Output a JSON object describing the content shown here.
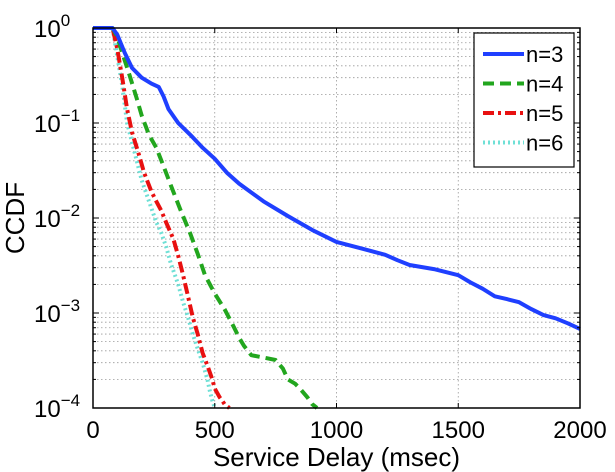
{
  "chart_data": {
    "type": "line",
    "xlabel": "Service Delay (msec)",
    "ylabel": "CCDF",
    "x_scale": "linear",
    "y_scale": "log",
    "xlim": [
      0,
      2000
    ],
    "ylim": [
      0.0001,
      1
    ],
    "x_ticks": [
      0,
      500,
      1000,
      1500,
      2000
    ],
    "x_tick_labels": [
      "0",
      "500",
      "1000",
      "1500",
      "2000"
    ],
    "y_ticks": [
      0.0001,
      0.001,
      0.01,
      0.1,
      1
    ],
    "y_tick_labels": [
      {
        "base": "10",
        "exp": "−4"
      },
      {
        "base": "10",
        "exp": "−3"
      },
      {
        "base": "10",
        "exp": "−2"
      },
      {
        "base": "10",
        "exp": "−1"
      },
      {
        "base": "10",
        "exp": "0"
      }
    ],
    "grid": "dotted, major and minor",
    "legend_position": "top-right",
    "series": [
      {
        "name": "n=3",
        "color": "#1f3fff",
        "dash": "solid",
        "points": [
          [
            0,
            1
          ],
          [
            80,
            1
          ],
          [
            100,
            0.85
          ],
          [
            130,
            0.55
          ],
          [
            160,
            0.38
          ],
          [
            200,
            0.3
          ],
          [
            240,
            0.26
          ],
          [
            270,
            0.24
          ],
          [
            290,
            0.19
          ],
          [
            310,
            0.14
          ],
          [
            350,
            0.1
          ],
          [
            400,
            0.075
          ],
          [
            450,
            0.055
          ],
          [
            500,
            0.042
          ],
          [
            550,
            0.03
          ],
          [
            600,
            0.023
          ],
          [
            700,
            0.015
          ],
          [
            800,
            0.0105
          ],
          [
            900,
            0.0075
          ],
          [
            1000,
            0.0056
          ],
          [
            1100,
            0.0048
          ],
          [
            1200,
            0.0041
          ],
          [
            1250,
            0.0036
          ],
          [
            1300,
            0.0032
          ],
          [
            1400,
            0.0029
          ],
          [
            1500,
            0.0025
          ],
          [
            1550,
            0.0021
          ],
          [
            1600,
            0.0018
          ],
          [
            1650,
            0.0015
          ],
          [
            1700,
            0.0014
          ],
          [
            1750,
            0.0013
          ],
          [
            1800,
            0.0011
          ],
          [
            1850,
            0.00095
          ],
          [
            1900,
            0.00088
          ],
          [
            1950,
            0.00078
          ],
          [
            2000,
            0.00068
          ]
        ]
      },
      {
        "name": "n=4",
        "color": "#22a61e",
        "dash": "dashed",
        "points": [
          [
            0,
            1
          ],
          [
            80,
            1
          ],
          [
            100,
            0.8
          ],
          [
            120,
            0.55
          ],
          [
            150,
            0.32
          ],
          [
            180,
            0.18
          ],
          [
            200,
            0.12
          ],
          [
            230,
            0.075
          ],
          [
            260,
            0.055
          ],
          [
            290,
            0.035
          ],
          [
            320,
            0.022
          ],
          [
            360,
            0.012
          ],
          [
            400,
            0.0068
          ],
          [
            430,
            0.0042
          ],
          [
            460,
            0.0025
          ],
          [
            500,
            0.0016
          ],
          [
            540,
            0.0011
          ],
          [
            580,
            0.0007
          ],
          [
            600,
            0.00055
          ],
          [
            620,
            0.00045
          ],
          [
            650,
            0.00036
          ],
          [
            700,
            0.00034
          ],
          [
            750,
            0.00032
          ],
          [
            780,
            0.00026
          ],
          [
            800,
            0.0002
          ],
          [
            830,
            0.00018
          ],
          [
            850,
            0.00016
          ],
          [
            880,
            0.00013
          ],
          [
            900,
            0.00011
          ],
          [
            920,
            0.0001
          ]
        ]
      },
      {
        "name": "n=5",
        "color": "#e81010",
        "dash": "dashdot",
        "points": [
          [
            0,
            1
          ],
          [
            80,
            1
          ],
          [
            100,
            0.6
          ],
          [
            120,
            0.3
          ],
          [
            140,
            0.14
          ],
          [
            160,
            0.08
          ],
          [
            190,
            0.045
          ],
          [
            210,
            0.03
          ],
          [
            240,
            0.019
          ],
          [
            260,
            0.015
          ],
          [
            280,
            0.012
          ],
          [
            300,
            0.009
          ],
          [
            330,
            0.006
          ],
          [
            350,
            0.004
          ],
          [
            370,
            0.0025
          ],
          [
            390,
            0.0015
          ],
          [
            410,
            0.0009
          ],
          [
            430,
            0.0006
          ],
          [
            450,
            0.00038
          ],
          [
            470,
            0.00028
          ],
          [
            490,
            0.0002
          ],
          [
            500,
            0.00016
          ],
          [
            520,
            0.00013
          ],
          [
            530,
            0.00012
          ],
          [
            540,
            0.00011
          ],
          [
            560,
            0.0001
          ]
        ]
      },
      {
        "name": "n=6",
        "color": "#6fe0d6",
        "dash": "dotted",
        "points": [
          [
            0,
            1
          ],
          [
            80,
            1
          ],
          [
            100,
            0.5
          ],
          [
            120,
            0.25
          ],
          [
            140,
            0.1
          ],
          [
            170,
            0.05
          ],
          [
            200,
            0.025
          ],
          [
            230,
            0.015
          ],
          [
            260,
            0.009
          ],
          [
            280,
            0.007
          ],
          [
            300,
            0.005
          ],
          [
            320,
            0.0033
          ],
          [
            350,
            0.002
          ],
          [
            370,
            0.0013
          ],
          [
            390,
            0.0009
          ],
          [
            410,
            0.0006
          ],
          [
            430,
            0.00042
          ],
          [
            450,
            0.0003
          ],
          [
            470,
            0.0002
          ],
          [
            480,
            0.00015
          ],
          [
            490,
            0.00012
          ],
          [
            500,
            0.0001
          ]
        ]
      }
    ]
  }
}
